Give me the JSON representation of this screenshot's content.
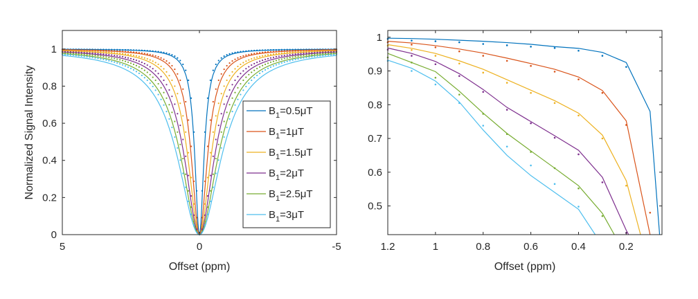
{
  "chart_data": [
    {
      "type": "line",
      "ylabel": "Normalized Signal Intensity",
      "xlabel": "Offset (ppm)",
      "xlim": [
        5,
        -5
      ],
      "ylim": [
        0,
        1.1
      ],
      "xticks": [
        {
          "value": 5,
          "label": "5"
        },
        {
          "value": 0,
          "label": "0"
        },
        {
          "value": -5,
          "label": "-5"
        }
      ],
      "yticks": [
        {
          "value": 0,
          "label": "0"
        },
        {
          "value": 0.2,
          "label": "0.2"
        },
        {
          "value": 0.4,
          "label": "0.4"
        },
        {
          "value": 0.6,
          "label": "0.6"
        },
        {
          "value": 0.8,
          "label": "0.8"
        },
        {
          "value": 1,
          "label": "1"
        }
      ],
      "legend_position": "bottom-right",
      "series": [
        {
          "name": "B1=0.5μT",
          "label_main": "B",
          "label_sub": "1",
          "label_rest": "=0.5μT",
          "color": "#0072BD",
          "width": 0.2
        },
        {
          "name": "B1=1μT",
          "label_main": "B",
          "label_sub": "1",
          "label_rest": "=1μT",
          "color": "#D95319",
          "width": 0.35
        },
        {
          "name": "B1=1.5μT",
          "label_main": "B",
          "label_sub": "1",
          "label_rest": "=1.5μT",
          "color": "#EDB120",
          "width": 0.5
        },
        {
          "name": "B1=2μT",
          "label_main": "B",
          "label_sub": "1",
          "label_rest": "=2μT",
          "color": "#7E2F8E",
          "width": 0.65
        },
        {
          "name": "B1=2.5μT",
          "label_main": "B",
          "label_sub": "1",
          "label_rest": "=2.5μT",
          "color": "#77AC30",
          "width": 0.8
        },
        {
          "name": "B1=3μT",
          "label_main": "B",
          "label_sub": "1",
          "label_rest": "=3μT",
          "color": "#4DBEEE",
          "width": 0.95
        }
      ]
    },
    {
      "type": "line",
      "xlabel": "Offset (ppm)",
      "xlim": [
        1.2,
        0.05
      ],
      "ylim": [
        0.415,
        1.02
      ],
      "xticks": [
        {
          "value": 1.2,
          "label": "1.2"
        },
        {
          "value": 1.0,
          "label": "1"
        },
        {
          "value": 0.8,
          "label": "0.8"
        },
        {
          "value": 0.6,
          "label": "0.6"
        },
        {
          "value": 0.4,
          "label": "0.4"
        },
        {
          "value": 0.2,
          "label": "0.2"
        }
      ],
      "yticks": [
        {
          "value": 0.5,
          "label": "0.5"
        },
        {
          "value": 0.6,
          "label": "0.6"
        },
        {
          "value": 0.7,
          "label": "0.7"
        },
        {
          "value": 0.8,
          "label": "0.8"
        },
        {
          "value": 0.9,
          "label": "0.9"
        },
        {
          "value": 1.0,
          "label": "1"
        }
      ],
      "series": [
        {
          "name": "B1=0.5μT",
          "color": "#0072BD",
          "x": [
            1.2,
            1.1,
            1.0,
            0.9,
            0.8,
            0.7,
            0.6,
            0.5,
            0.4,
            0.3,
            0.2,
            0.1,
            0.06
          ],
          "y": [
            0.997,
            0.996,
            0.994,
            0.991,
            0.988,
            0.984,
            0.979,
            0.972,
            0.967,
            0.955,
            0.925,
            0.78,
            0.415
          ],
          "dots_x": [
            1.2,
            1.1,
            1.0,
            0.9,
            0.8,
            0.7,
            0.6,
            0.5,
            0.4,
            0.3,
            0.2
          ],
          "dots_y": [
            0.995,
            0.99,
            0.988,
            0.985,
            0.98,
            0.976,
            0.972,
            0.968,
            0.96,
            0.945,
            0.912
          ]
        },
        {
          "name": "B1=1μT",
          "color": "#D95319",
          "x": [
            1.2,
            1.1,
            1.0,
            0.9,
            0.8,
            0.7,
            0.6,
            0.5,
            0.4,
            0.3,
            0.2,
            0.1
          ],
          "y": [
            0.988,
            0.983,
            0.975,
            0.965,
            0.953,
            0.938,
            0.922,
            0.905,
            0.882,
            0.842,
            0.752,
            0.415
          ],
          "dots_x": [
            1.2,
            1.1,
            1.0,
            0.9,
            0.8,
            0.7,
            0.6,
            0.5,
            0.4,
            0.3,
            0.2,
            0.1
          ],
          "dots_y": [
            0.985,
            0.978,
            0.97,
            0.958,
            0.945,
            0.93,
            0.915,
            0.898,
            0.875,
            0.835,
            0.74,
            0.48
          ]
        },
        {
          "name": "B1=1.5μT",
          "color": "#EDB120",
          "x": [
            1.2,
            1.1,
            1.0,
            0.9,
            0.8,
            0.7,
            0.6,
            0.5,
            0.4,
            0.3,
            0.2,
            0.14
          ],
          "y": [
            0.978,
            0.967,
            0.952,
            0.93,
            0.905,
            0.874,
            0.843,
            0.812,
            0.775,
            0.71,
            0.575,
            0.415
          ],
          "dots_x": [
            1.2,
            1.1,
            1.0,
            0.9,
            0.8,
            0.7,
            0.6,
            0.5,
            0.4,
            0.3,
            0.2
          ],
          "dots_y": [
            0.975,
            0.962,
            0.945,
            0.922,
            0.895,
            0.865,
            0.835,
            0.805,
            0.768,
            0.7,
            0.56
          ]
        },
        {
          "name": "B1=2μT",
          "color": "#7E2F8E",
          "x": [
            1.2,
            1.1,
            1.0,
            0.9,
            0.8,
            0.7,
            0.6,
            0.5,
            0.4,
            0.3,
            0.2,
            0.19
          ],
          "y": [
            0.968,
            0.952,
            0.928,
            0.892,
            0.845,
            0.792,
            0.75,
            0.708,
            0.665,
            0.585,
            0.428,
            0.415
          ],
          "dots_x": [
            1.2,
            1.1,
            1.0,
            0.9,
            0.8,
            0.7,
            0.6,
            0.5,
            0.4,
            0.3,
            0.2
          ],
          "dots_y": [
            0.963,
            0.945,
            0.92,
            0.885,
            0.838,
            0.785,
            0.745,
            0.702,
            0.653,
            0.57,
            0.42
          ]
        },
        {
          "name": "B1=2.5μT",
          "color": "#77AC30",
          "x": [
            1.2,
            1.1,
            1.0,
            0.9,
            0.8,
            0.7,
            0.6,
            0.5,
            0.4,
            0.3,
            0.25
          ],
          "y": [
            0.952,
            0.925,
            0.898,
            0.84,
            0.775,
            0.715,
            0.663,
            0.612,
            0.56,
            0.478,
            0.415
          ],
          "dots_x": [
            1.2,
            1.1,
            1.0,
            0.9,
            0.8,
            0.7,
            0.6,
            0.5,
            0.4,
            0.3
          ],
          "dots_y": [
            0.94,
            0.925,
            0.88,
            0.83,
            0.773,
            0.713,
            0.66,
            0.612,
            0.552,
            0.47
          ]
        },
        {
          "name": "B1=3μT",
          "color": "#4DBEEE",
          "x": [
            1.2,
            1.1,
            1.0,
            0.9,
            0.8,
            0.7,
            0.6,
            0.5,
            0.4,
            0.33
          ],
          "y": [
            0.932,
            0.908,
            0.87,
            0.808,
            0.725,
            0.65,
            0.59,
            0.54,
            0.49,
            0.415
          ],
          "dots_x": [
            1.2,
            1.1,
            1.0,
            0.9,
            0.8,
            0.7,
            0.6,
            0.5,
            0.4
          ],
          "dots_y": [
            0.93,
            0.9,
            0.86,
            0.805,
            0.738,
            0.676,
            0.62,
            0.565,
            0.498
          ]
        }
      ]
    }
  ]
}
